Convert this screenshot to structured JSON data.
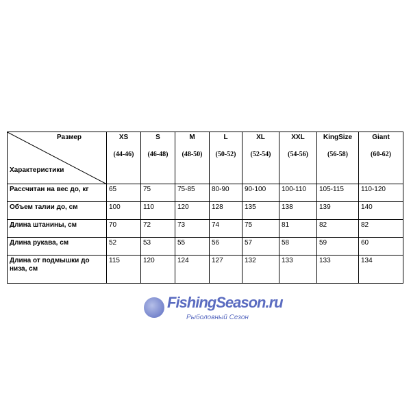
{
  "header": {
    "corner_top": "Размер",
    "corner_bottom": "Характеристики",
    "sizes": [
      {
        "name": "XS",
        "range": "(44-46)"
      },
      {
        "name": "S",
        "range": "(46-48)"
      },
      {
        "name": "M",
        "range": "(48-50)"
      },
      {
        "name": "L",
        "range": "(50-52)"
      },
      {
        "name": "XL",
        "range": "(52-54)"
      },
      {
        "name": "XXL",
        "range": "(54-56)"
      },
      {
        "name": "KingSize",
        "range": "(56-58)"
      },
      {
        "name": "Giant",
        "range": "(60-62)"
      }
    ]
  },
  "rows": [
    {
      "label": "Рассчитан на вес до, кг",
      "values": [
        "65",
        "75",
        "75-85",
        "80-90",
        "90-100",
        "100-110",
        "105-115",
        "110-120"
      ]
    },
    {
      "label": "Объем талии до, см",
      "values": [
        "100",
        "110",
        "120",
        "128",
        "135",
        "138",
        "139",
        "140"
      ]
    },
    {
      "label": "Длина штанины, см",
      "values": [
        "70",
        "72",
        "73",
        "74",
        "75",
        "81",
        "82",
        "82"
      ]
    },
    {
      "label": "Длина рукава, см",
      "values": [
        "52",
        "53",
        "55",
        "56",
        "57",
        "58",
        "59",
        "60"
      ]
    },
    {
      "label": "Длина от подмышки до низа, см",
      "values": [
        "115",
        "120",
        "124",
        "127",
        "132",
        "133",
        "133",
        "134"
      ]
    }
  ],
  "watermark": {
    "title": "FishingSeason.ru",
    "subtitle": "Рыболовный Сезон",
    "color": "#5a6bc0"
  }
}
